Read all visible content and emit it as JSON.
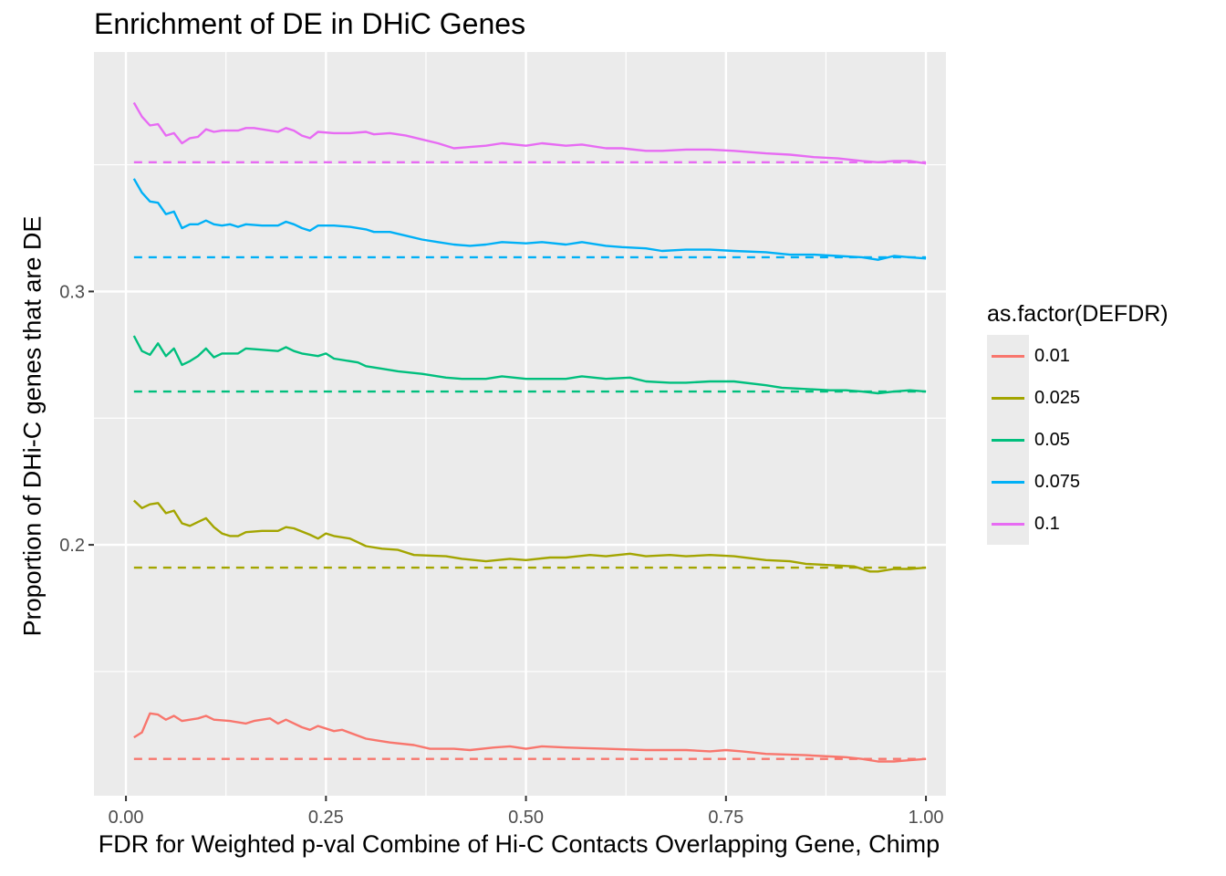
{
  "chart_data": {
    "type": "line",
    "title": "Enrichment of DE in DHiC Genes",
    "xlabel": "FDR for Weighted p-val Combine of Hi-C Contacts Overlapping Gene, Chimp",
    "ylabel": "Proportion of DHi-C genes that are DE",
    "xlim": [
      -0.04,
      1.025
    ],
    "ylim": [
      0.101,
      0.3945
    ],
    "x_ticks": [
      {
        "value": 0.0,
        "label": "0.00"
      },
      {
        "value": 0.25,
        "label": "0.25"
      },
      {
        "value": 0.5,
        "label": "0.50"
      },
      {
        "value": 0.75,
        "label": "0.75"
      },
      {
        "value": 1.0,
        "label": "1.00"
      }
    ],
    "y_ticks": [
      {
        "value": 0.2,
        "label": "0.2"
      },
      {
        "value": 0.3,
        "label": "0.3"
      }
    ],
    "grid": true,
    "legend": {
      "title": "as.factor(DEFDR)",
      "position": "right"
    },
    "series": [
      {
        "name": "0.01",
        "color": "#F8766D",
        "baseline": 0.1155,
        "points": [
          [
            0.01,
            0.124
          ],
          [
            0.02,
            0.126
          ],
          [
            0.03,
            0.1335
          ],
          [
            0.04,
            0.133
          ],
          [
            0.05,
            0.131
          ],
          [
            0.06,
            0.1325
          ],
          [
            0.07,
            0.1305
          ],
          [
            0.08,
            0.131
          ],
          [
            0.09,
            0.1315
          ],
          [
            0.1,
            0.1325
          ],
          [
            0.11,
            0.131
          ],
          [
            0.13,
            0.1305
          ],
          [
            0.15,
            0.1295
          ],
          [
            0.16,
            0.1305
          ],
          [
            0.18,
            0.1315
          ],
          [
            0.19,
            0.1295
          ],
          [
            0.2,
            0.131
          ],
          [
            0.22,
            0.128
          ],
          [
            0.23,
            0.127
          ],
          [
            0.24,
            0.1285
          ],
          [
            0.26,
            0.1265
          ],
          [
            0.27,
            0.127
          ],
          [
            0.3,
            0.1235
          ],
          [
            0.31,
            0.123
          ],
          [
            0.33,
            0.122
          ],
          [
            0.36,
            0.121
          ],
          [
            0.38,
            0.1195
          ],
          [
            0.41,
            0.1195
          ],
          [
            0.43,
            0.119
          ],
          [
            0.46,
            0.12
          ],
          [
            0.48,
            0.1205
          ],
          [
            0.5,
            0.1195
          ],
          [
            0.52,
            0.1205
          ],
          [
            0.55,
            0.12
          ],
          [
            0.6,
            0.1195
          ],
          [
            0.65,
            0.119
          ],
          [
            0.7,
            0.119
          ],
          [
            0.73,
            0.1185
          ],
          [
            0.75,
            0.119
          ],
          [
            0.77,
            0.1185
          ],
          [
            0.8,
            0.1175
          ],
          [
            0.85,
            0.117
          ],
          [
            0.88,
            0.1165
          ],
          [
            0.9,
            0.1162
          ],
          [
            0.92,
            0.1155
          ],
          [
            0.94,
            0.1145
          ],
          [
            0.96,
            0.1145
          ],
          [
            0.98,
            0.115
          ],
          [
            1.0,
            0.1155
          ]
        ]
      },
      {
        "name": "0.025",
        "color": "#A3A500",
        "baseline": 0.191,
        "points": [
          [
            0.01,
            0.2175
          ],
          [
            0.02,
            0.2145
          ],
          [
            0.03,
            0.216
          ],
          [
            0.04,
            0.2165
          ],
          [
            0.05,
            0.2125
          ],
          [
            0.06,
            0.2135
          ],
          [
            0.07,
            0.2085
          ],
          [
            0.08,
            0.2075
          ],
          [
            0.09,
            0.209
          ],
          [
            0.1,
            0.2105
          ],
          [
            0.11,
            0.207
          ],
          [
            0.12,
            0.2045
          ],
          [
            0.13,
            0.2035
          ],
          [
            0.14,
            0.2035
          ],
          [
            0.15,
            0.205
          ],
          [
            0.17,
            0.2055
          ],
          [
            0.19,
            0.2055
          ],
          [
            0.2,
            0.207
          ],
          [
            0.21,
            0.2065
          ],
          [
            0.23,
            0.204
          ],
          [
            0.24,
            0.2025
          ],
          [
            0.25,
            0.2045
          ],
          [
            0.26,
            0.2035
          ],
          [
            0.28,
            0.2025
          ],
          [
            0.3,
            0.1995
          ],
          [
            0.32,
            0.1985
          ],
          [
            0.34,
            0.198
          ],
          [
            0.36,
            0.196
          ],
          [
            0.4,
            0.1955
          ],
          [
            0.42,
            0.1945
          ],
          [
            0.45,
            0.1935
          ],
          [
            0.48,
            0.1945
          ],
          [
            0.5,
            0.194
          ],
          [
            0.53,
            0.195
          ],
          [
            0.55,
            0.195
          ],
          [
            0.58,
            0.196
          ],
          [
            0.6,
            0.1955
          ],
          [
            0.63,
            0.1965
          ],
          [
            0.65,
            0.1955
          ],
          [
            0.68,
            0.196
          ],
          [
            0.7,
            0.1955
          ],
          [
            0.73,
            0.196
          ],
          [
            0.76,
            0.1955
          ],
          [
            0.8,
            0.194
          ],
          [
            0.83,
            0.1935
          ],
          [
            0.85,
            0.1925
          ],
          [
            0.88,
            0.192
          ],
          [
            0.91,
            0.1915
          ],
          [
            0.93,
            0.1895
          ],
          [
            0.94,
            0.1895
          ],
          [
            0.96,
            0.1905
          ],
          [
            0.98,
            0.1905
          ],
          [
            1.0,
            0.191
          ]
        ]
      },
      {
        "name": "0.05",
        "color": "#00BF7D",
        "baseline": 0.2605,
        "points": [
          [
            0.01,
            0.2825
          ],
          [
            0.02,
            0.2765
          ],
          [
            0.03,
            0.275
          ],
          [
            0.04,
            0.2795
          ],
          [
            0.05,
            0.2745
          ],
          [
            0.06,
            0.2775
          ],
          [
            0.07,
            0.271
          ],
          [
            0.08,
            0.2725
          ],
          [
            0.09,
            0.2745
          ],
          [
            0.1,
            0.2775
          ],
          [
            0.11,
            0.274
          ],
          [
            0.12,
            0.2755
          ],
          [
            0.14,
            0.2755
          ],
          [
            0.15,
            0.2775
          ],
          [
            0.17,
            0.277
          ],
          [
            0.19,
            0.2765
          ],
          [
            0.2,
            0.278
          ],
          [
            0.21,
            0.2765
          ],
          [
            0.22,
            0.2755
          ],
          [
            0.24,
            0.2745
          ],
          [
            0.25,
            0.2755
          ],
          [
            0.26,
            0.2735
          ],
          [
            0.29,
            0.272
          ],
          [
            0.3,
            0.2705
          ],
          [
            0.32,
            0.2695
          ],
          [
            0.34,
            0.2685
          ],
          [
            0.37,
            0.2675
          ],
          [
            0.4,
            0.266
          ],
          [
            0.42,
            0.2655
          ],
          [
            0.45,
            0.2655
          ],
          [
            0.47,
            0.2665
          ],
          [
            0.5,
            0.2655
          ],
          [
            0.52,
            0.2655
          ],
          [
            0.55,
            0.2655
          ],
          [
            0.57,
            0.2665
          ],
          [
            0.6,
            0.2655
          ],
          [
            0.63,
            0.266
          ],
          [
            0.65,
            0.2645
          ],
          [
            0.68,
            0.264
          ],
          [
            0.7,
            0.264
          ],
          [
            0.73,
            0.2645
          ],
          [
            0.76,
            0.2645
          ],
          [
            0.8,
            0.263
          ],
          [
            0.82,
            0.262
          ],
          [
            0.85,
            0.2615
          ],
          [
            0.88,
            0.261
          ],
          [
            0.9,
            0.261
          ],
          [
            0.92,
            0.2605
          ],
          [
            0.94,
            0.2598
          ],
          [
            0.96,
            0.2605
          ],
          [
            0.98,
            0.261
          ],
          [
            1.0,
            0.2605
          ]
        ]
      },
      {
        "name": "0.075",
        "color": "#00B0F6",
        "baseline": 0.3135,
        "points": [
          [
            0.01,
            0.3445
          ],
          [
            0.02,
            0.339
          ],
          [
            0.03,
            0.3355
          ],
          [
            0.04,
            0.335
          ],
          [
            0.05,
            0.3305
          ],
          [
            0.06,
            0.3315
          ],
          [
            0.07,
            0.325
          ],
          [
            0.08,
            0.3265
          ],
          [
            0.09,
            0.3265
          ],
          [
            0.1,
            0.328
          ],
          [
            0.11,
            0.3265
          ],
          [
            0.12,
            0.326
          ],
          [
            0.13,
            0.3265
          ],
          [
            0.14,
            0.3255
          ],
          [
            0.15,
            0.3265
          ],
          [
            0.17,
            0.326
          ],
          [
            0.19,
            0.326
          ],
          [
            0.2,
            0.3275
          ],
          [
            0.21,
            0.3265
          ],
          [
            0.22,
            0.325
          ],
          [
            0.23,
            0.324
          ],
          [
            0.24,
            0.326
          ],
          [
            0.26,
            0.326
          ],
          [
            0.28,
            0.3255
          ],
          [
            0.3,
            0.3245
          ],
          [
            0.31,
            0.3235
          ],
          [
            0.33,
            0.3235
          ],
          [
            0.35,
            0.322
          ],
          [
            0.37,
            0.3205
          ],
          [
            0.39,
            0.3195
          ],
          [
            0.41,
            0.3185
          ],
          [
            0.43,
            0.318
          ],
          [
            0.45,
            0.3185
          ],
          [
            0.47,
            0.3195
          ],
          [
            0.5,
            0.319
          ],
          [
            0.52,
            0.3195
          ],
          [
            0.55,
            0.3185
          ],
          [
            0.57,
            0.3195
          ],
          [
            0.6,
            0.318
          ],
          [
            0.62,
            0.3175
          ],
          [
            0.65,
            0.317
          ],
          [
            0.67,
            0.316
          ],
          [
            0.7,
            0.3165
          ],
          [
            0.73,
            0.3165
          ],
          [
            0.76,
            0.316
          ],
          [
            0.8,
            0.3155
          ],
          [
            0.83,
            0.3145
          ],
          [
            0.86,
            0.3145
          ],
          [
            0.89,
            0.314
          ],
          [
            0.92,
            0.3135
          ],
          [
            0.94,
            0.3125
          ],
          [
            0.96,
            0.314
          ],
          [
            0.98,
            0.3135
          ],
          [
            1.0,
            0.313
          ]
        ]
      },
      {
        "name": "0.1",
        "color": "#E76BF3",
        "baseline": 0.351,
        "points": [
          [
            0.01,
            0.3745
          ],
          [
            0.02,
            0.369
          ],
          [
            0.03,
            0.3655
          ],
          [
            0.04,
            0.366
          ],
          [
            0.05,
            0.3615
          ],
          [
            0.06,
            0.3625
          ],
          [
            0.07,
            0.3585
          ],
          [
            0.08,
            0.3605
          ],
          [
            0.09,
            0.361
          ],
          [
            0.1,
            0.364
          ],
          [
            0.11,
            0.363
          ],
          [
            0.12,
            0.3635
          ],
          [
            0.14,
            0.3635
          ],
          [
            0.15,
            0.3645
          ],
          [
            0.16,
            0.3645
          ],
          [
            0.18,
            0.3635
          ],
          [
            0.19,
            0.363
          ],
          [
            0.2,
            0.3645
          ],
          [
            0.21,
            0.3635
          ],
          [
            0.22,
            0.3615
          ],
          [
            0.23,
            0.3605
          ],
          [
            0.24,
            0.363
          ],
          [
            0.26,
            0.3625
          ],
          [
            0.28,
            0.3625
          ],
          [
            0.3,
            0.363
          ],
          [
            0.31,
            0.362
          ],
          [
            0.33,
            0.3625
          ],
          [
            0.35,
            0.3615
          ],
          [
            0.37,
            0.36
          ],
          [
            0.39,
            0.3585
          ],
          [
            0.41,
            0.3565
          ],
          [
            0.43,
            0.357
          ],
          [
            0.45,
            0.3575
          ],
          [
            0.47,
            0.3585
          ],
          [
            0.5,
            0.3575
          ],
          [
            0.52,
            0.3585
          ],
          [
            0.55,
            0.3575
          ],
          [
            0.57,
            0.358
          ],
          [
            0.6,
            0.3565
          ],
          [
            0.62,
            0.3565
          ],
          [
            0.65,
            0.3555
          ],
          [
            0.67,
            0.3555
          ],
          [
            0.7,
            0.356
          ],
          [
            0.73,
            0.356
          ],
          [
            0.76,
            0.3555
          ],
          [
            0.8,
            0.3545
          ],
          [
            0.83,
            0.354
          ],
          [
            0.86,
            0.353
          ],
          [
            0.89,
            0.3525
          ],
          [
            0.92,
            0.3515
          ],
          [
            0.94,
            0.351
          ],
          [
            0.96,
            0.3515
          ],
          [
            0.98,
            0.3515
          ],
          [
            1.0,
            0.3505
          ]
        ]
      }
    ]
  }
}
